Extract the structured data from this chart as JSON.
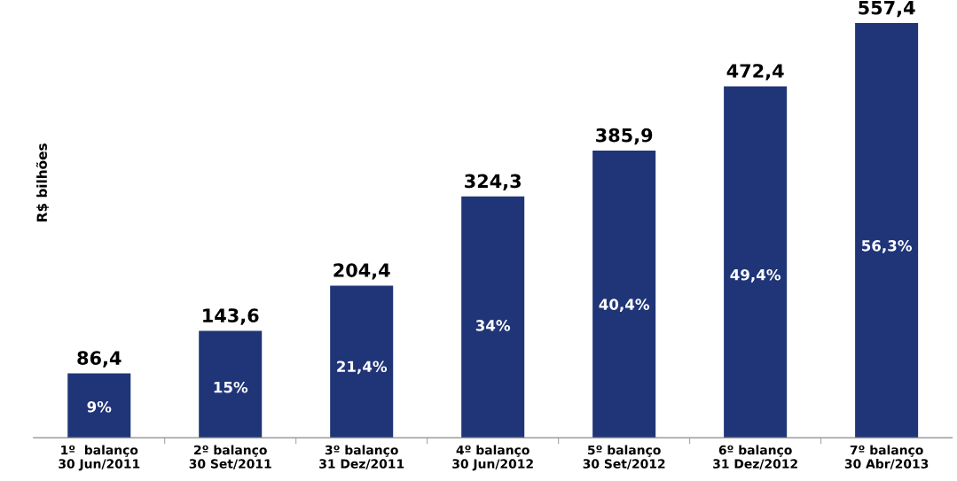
{
  "chart_data": {
    "type": "bar",
    "ylabel": "R$ bilhões",
    "categories": [
      "1º  balanço\n30 Jun/2011",
      "2º balanço\n30 Set/2011",
      "3º balanço\n31 Dez/2011",
      "4º balanço\n30 Jun/2012",
      "5º balanço\n30 Set/2012",
      "6º balanço\n31 Dez/2012",
      "7º balanço\n30 Abr/2013"
    ],
    "values": [
      86.4,
      143.6,
      204.4,
      324.3,
      385.9,
      472.4,
      557.4
    ],
    "value_labels": [
      "86,4",
      "143,6",
      "204,4",
      "324,3",
      "385,9",
      "472,4",
      "557,4"
    ],
    "color": "#1f3577",
    "tick_labels": "x",
    "grid": false,
    "legend": false,
    "annotations": [
      "9%",
      "15%",
      "21,4%",
      "34%",
      "40,4%",
      "49,4%",
      "56,3%"
    ]
  }
}
